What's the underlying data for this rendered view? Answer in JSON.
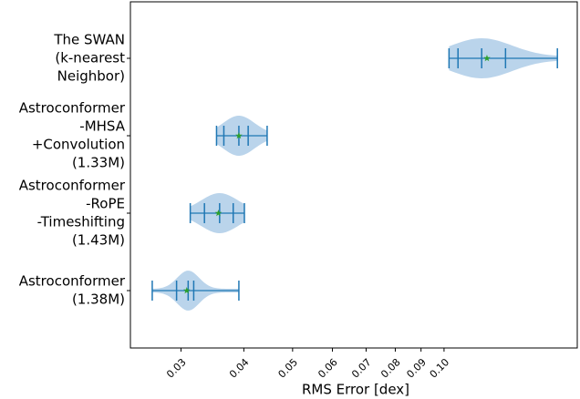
{
  "chart_data": {
    "type": "violin",
    "x_label": "RMS Error [dex]",
    "categories": [
      [
        "The SWAN",
        "(k-nearest",
        "Neighbor)"
      ],
      [
        "Astroconformer",
        "-MHSA",
        "+Convolution",
        "(1.33M)"
      ],
      [
        "Astroconformer",
        "-RoPE",
        "-Timeshifting",
        "(1.43M)"
      ],
      [
        "Astroconformer",
        "(1.38M)"
      ]
    ],
    "violins": [
      {
        "min": 0.1023,
        "q1": 0.1066,
        "median": 0.1188,
        "q3": 0.1325,
        "max": 0.168,
        "mean": 0.1217
      },
      {
        "min": 0.0353,
        "q1": 0.0365,
        "median": 0.0391,
        "q3": 0.0408,
        "max": 0.0445,
        "mean": 0.0391
      },
      {
        "min": 0.0313,
        "q1": 0.0334,
        "median": 0.0358,
        "q3": 0.0381,
        "max": 0.0401,
        "mean": 0.0356
      },
      {
        "min": 0.0263,
        "q1": 0.0294,
        "median": 0.031,
        "q3": 0.0318,
        "max": 0.0391,
        "mean": 0.0308
      }
    ],
    "xscale": "log",
    "xlim": [
      0.0238,
      0.184
    ],
    "xticks": [
      0.03,
      0.04,
      0.05,
      0.06,
      0.07,
      0.08,
      0.09,
      {
        "value": 0.1,
        "label": "0.10"
      }
    ],
    "color": "#1f77b4",
    "fill_color": "#aecde8",
    "mean_color": "#2ca02c"
  }
}
